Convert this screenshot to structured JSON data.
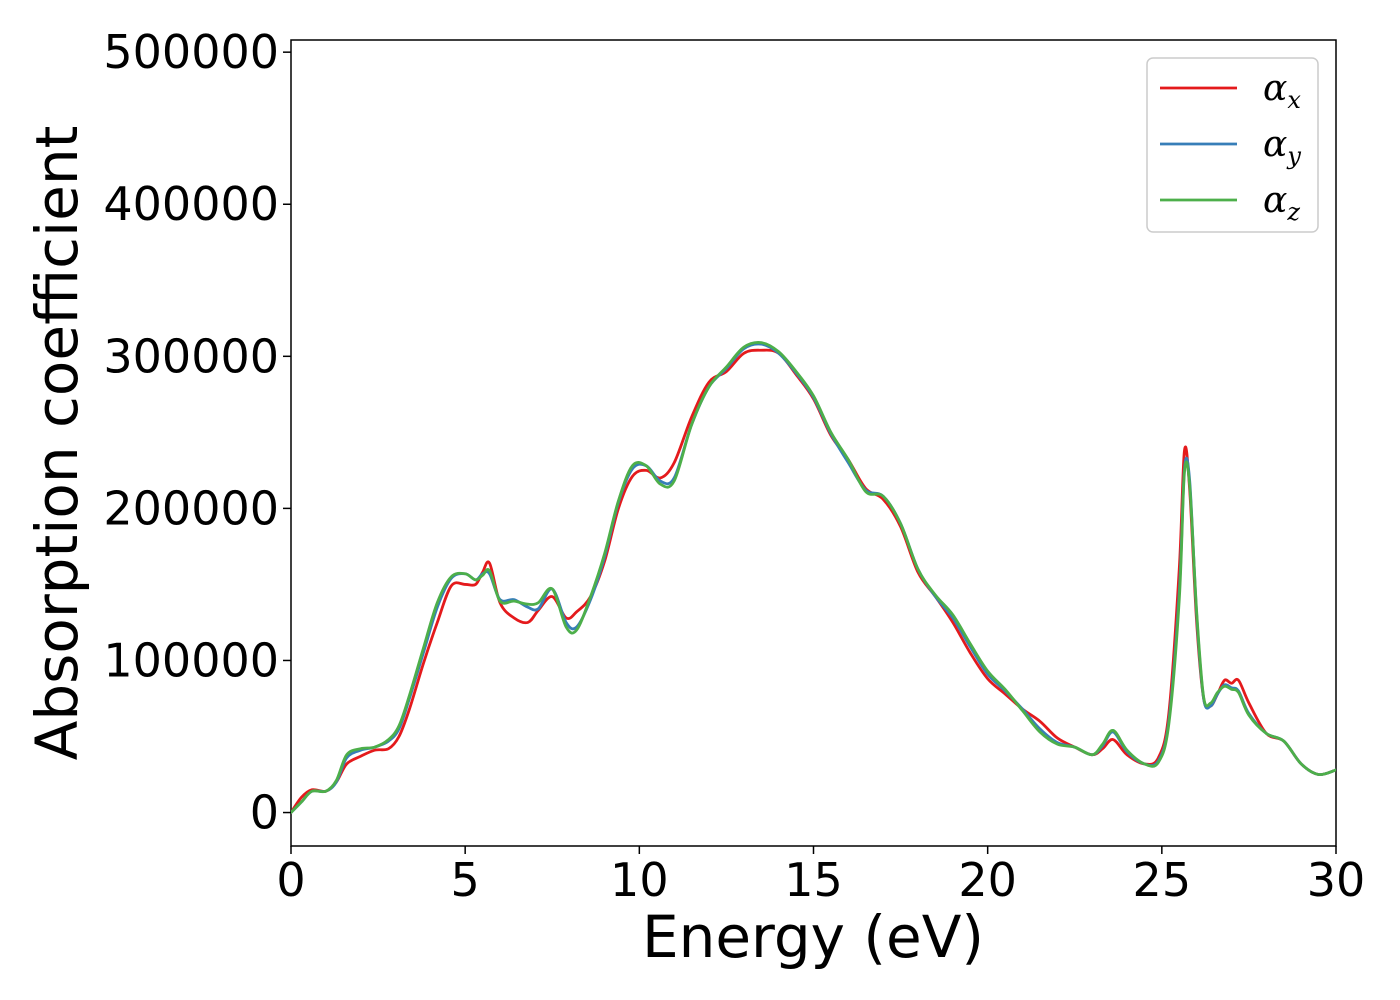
{
  "chart_data": {
    "type": "line",
    "title": "",
    "xlabel": "Energy (eV)",
    "ylabel": "Absorption coefficient",
    "xlim": [
      0,
      30
    ],
    "ylim": [
      -22000,
      508000
    ],
    "xticks": [
      0,
      5,
      10,
      15,
      20,
      25,
      30
    ],
    "yticks": [
      0,
      100000,
      200000,
      300000,
      400000,
      500000
    ],
    "grid": false,
    "legend_position": "top-right",
    "series": [
      {
        "name": "α_x",
        "symbol": "α",
        "subscript": "x",
        "color": "#e41a1c",
        "x": [
          0,
          0.3,
          0.6,
          1.0,
          1.3,
          1.6,
          2.0,
          2.4,
          2.8,
          3.1,
          3.4,
          3.8,
          4.2,
          4.6,
          5.0,
          5.3,
          5.5,
          5.7,
          6.0,
          6.4,
          6.8,
          7.1,
          7.5,
          7.9,
          8.2,
          8.6,
          9.0,
          9.4,
          9.8,
          10.2,
          10.6,
          11.0,
          11.5,
          12.0,
          12.5,
          13.0,
          13.5,
          14.0,
          14.5,
          15.0,
          15.5,
          16.0,
          16.5,
          17.0,
          17.5,
          18.0,
          18.5,
          19.0,
          19.5,
          20.0,
          20.5,
          21.0,
          21.5,
          22.0,
          22.5,
          23.0,
          23.3,
          23.6,
          24.0,
          24.5,
          24.9,
          25.2,
          25.5,
          25.65,
          25.8,
          26.0,
          26.2,
          26.4,
          26.6,
          26.8,
          27.0,
          27.2,
          27.5,
          28.0,
          28.5,
          29.0,
          29.5,
          30.0
        ],
        "values": [
          0,
          10000,
          15000,
          14000,
          20000,
          32000,
          37000,
          41000,
          42000,
          50000,
          68000,
          98000,
          125000,
          149000,
          150000,
          150000,
          158000,
          164000,
          138000,
          128000,
          125000,
          133000,
          142000,
          128000,
          132000,
          142000,
          165000,
          200000,
          221000,
          225000,
          220000,
          230000,
          260000,
          283000,
          290000,
          302000,
          304000,
          302000,
          288000,
          272000,
          248000,
          232000,
          213000,
          206000,
          188000,
          158000,
          142000,
          125000,
          105000,
          88000,
          78000,
          68000,
          60000,
          49000,
          43000,
          38000,
          42000,
          48000,
          38000,
          32000,
          36000,
          65000,
          160000,
          238000,
          212000,
          125000,
          75000,
          70000,
          78000,
          87000,
          85000,
          87000,
          72000,
          52000,
          47000,
          32000,
          25000,
          28000
        ]
      },
      {
        "name": "α_y",
        "symbol": "α",
        "subscript": "y",
        "color": "#377eb8",
        "x": [
          0,
          0.3,
          0.6,
          1.0,
          1.3,
          1.6,
          2.0,
          2.4,
          2.8,
          3.1,
          3.4,
          3.8,
          4.2,
          4.6,
          5.0,
          5.3,
          5.5,
          5.7,
          6.0,
          6.4,
          6.8,
          7.1,
          7.5,
          7.9,
          8.2,
          8.6,
          9.0,
          9.4,
          9.8,
          10.2,
          10.6,
          11.0,
          11.5,
          12.0,
          12.5,
          13.0,
          13.5,
          14.0,
          14.5,
          15.0,
          15.5,
          16.0,
          16.5,
          17.0,
          17.5,
          18.0,
          18.5,
          19.0,
          19.5,
          20.0,
          20.5,
          21.0,
          21.5,
          22.0,
          22.5,
          23.0,
          23.3,
          23.6,
          24.0,
          24.5,
          24.9,
          25.2,
          25.5,
          25.65,
          25.8,
          26.0,
          26.2,
          26.4,
          26.6,
          26.8,
          27.0,
          27.2,
          27.5,
          28.0,
          28.5,
          29.0,
          29.5,
          30.0
        ],
        "values": [
          0,
          7000,
          14000,
          14000,
          20000,
          36000,
          41000,
          43000,
          47000,
          55000,
          75000,
          105000,
          135000,
          154000,
          157000,
          153000,
          157000,
          157000,
          140000,
          140000,
          135000,
          134000,
          147000,
          125000,
          122000,
          140000,
          168000,
          204000,
          226000,
          228000,
          218000,
          220000,
          255000,
          280000,
          292000,
          305000,
          308000,
          302000,
          289000,
          273000,
          249000,
          230000,
          212000,
          208000,
          190000,
          160000,
          142000,
          128000,
          109000,
          91000,
          80000,
          68000,
          55000,
          46000,
          43000,
          38000,
          44000,
          53000,
          40000,
          32000,
          34000,
          60000,
          145000,
          226000,
          218000,
          130000,
          75000,
          70000,
          78000,
          84000,
          82000,
          80000,
          65000,
          52000,
          47000,
          32000,
          25000,
          28000
        ]
      },
      {
        "name": "α_z",
        "symbol": "α",
        "subscript": "z",
        "color": "#4daf4a",
        "x": [
          0,
          0.3,
          0.6,
          1.0,
          1.3,
          1.6,
          2.0,
          2.4,
          2.8,
          3.1,
          3.4,
          3.8,
          4.2,
          4.6,
          5.0,
          5.3,
          5.5,
          5.7,
          6.0,
          6.4,
          6.8,
          7.1,
          7.5,
          7.9,
          8.2,
          8.6,
          9.0,
          9.4,
          9.8,
          10.2,
          10.6,
          11.0,
          11.5,
          12.0,
          12.5,
          13.0,
          13.5,
          14.0,
          14.5,
          15.0,
          15.5,
          16.0,
          16.5,
          17.0,
          17.5,
          18.0,
          18.5,
          19.0,
          19.5,
          20.0,
          20.5,
          21.0,
          21.5,
          22.0,
          22.5,
          23.0,
          23.3,
          23.6,
          24.0,
          24.5,
          24.9,
          25.2,
          25.5,
          25.65,
          25.8,
          26.0,
          26.2,
          26.4,
          26.6,
          26.8,
          27.0,
          27.2,
          27.5,
          28.0,
          28.5,
          29.0,
          29.5,
          30.0
        ],
        "values": [
          0,
          7000,
          14000,
          14000,
          21000,
          38000,
          42000,
          43000,
          48000,
          57000,
          77000,
          108000,
          138000,
          155000,
          157000,
          153000,
          156000,
          159000,
          139000,
          139000,
          137000,
          138000,
          147000,
          122000,
          120000,
          142000,
          170000,
          205000,
          228000,
          228000,
          216000,
          218000,
          255000,
          280000,
          293000,
          306000,
          309000,
          303000,
          290000,
          274000,
          250000,
          232000,
          211000,
          208000,
          190000,
          160000,
          143000,
          130000,
          111000,
          93000,
          81000,
          67000,
          53000,
          45000,
          43000,
          38000,
          45000,
          54000,
          41000,
          32000,
          33000,
          58000,
          140000,
          224000,
          215000,
          132000,
          76000,
          72000,
          79000,
          83000,
          81000,
          79000,
          64000,
          52000,
          47000,
          32000,
          25000,
          28000
        ]
      }
    ]
  }
}
